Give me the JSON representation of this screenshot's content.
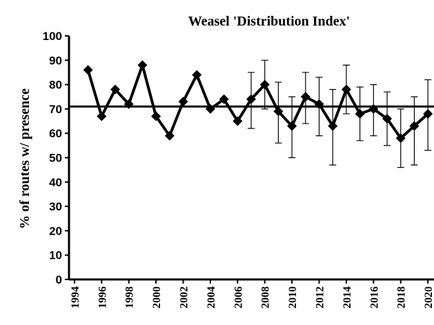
{
  "chart_data": {
    "type": "line",
    "title": "Weasel 'Distribution Index'",
    "y_label": "% of routes w/ presence",
    "x": [
      1995,
      1996,
      1997,
      1998,
      1999,
      2000,
      2001,
      2002,
      2003,
      2004,
      2005,
      2006,
      2007,
      2008,
      2009,
      2010,
      2011,
      2012,
      2013,
      2014,
      2015,
      2016,
      2017,
      2018,
      2019,
      2020
    ],
    "series": [
      {
        "color": "#000000",
        "values": [
          86,
          67,
          78,
          72,
          88,
          67,
          59,
          73,
          84,
          70,
          74,
          65,
          74,
          80,
          69,
          63,
          75,
          72,
          63,
          78,
          68,
          70,
          66,
          58,
          63,
          68
        ],
        "lower": [
          null,
          null,
          null,
          null,
          null,
          null,
          null,
          null,
          null,
          null,
          null,
          null,
          62,
          70,
          56,
          50,
          64,
          59,
          47,
          68,
          57,
          59,
          55,
          46,
          47,
          53
        ],
        "upper": [
          null,
          null,
          null,
          null,
          null,
          null,
          null,
          null,
          null,
          null,
          null,
          null,
          85,
          90,
          81,
          75,
          85,
          83,
          78,
          88,
          79,
          80,
          77,
          70,
          75,
          82
        ]
      }
    ],
    "reference_line": 71,
    "xlim": [
      1993.6,
      2020.5
    ],
    "xticks": [
      1994,
      1996,
      1998,
      2000,
      2002,
      2004,
      2006,
      2008,
      2010,
      2012,
      2014,
      2016,
      2018,
      2020
    ],
    "ylim": [
      0,
      100
    ],
    "yticks": [
      0,
      10,
      20,
      30,
      40,
      50,
      60,
      70,
      80,
      90,
      100
    ]
  }
}
